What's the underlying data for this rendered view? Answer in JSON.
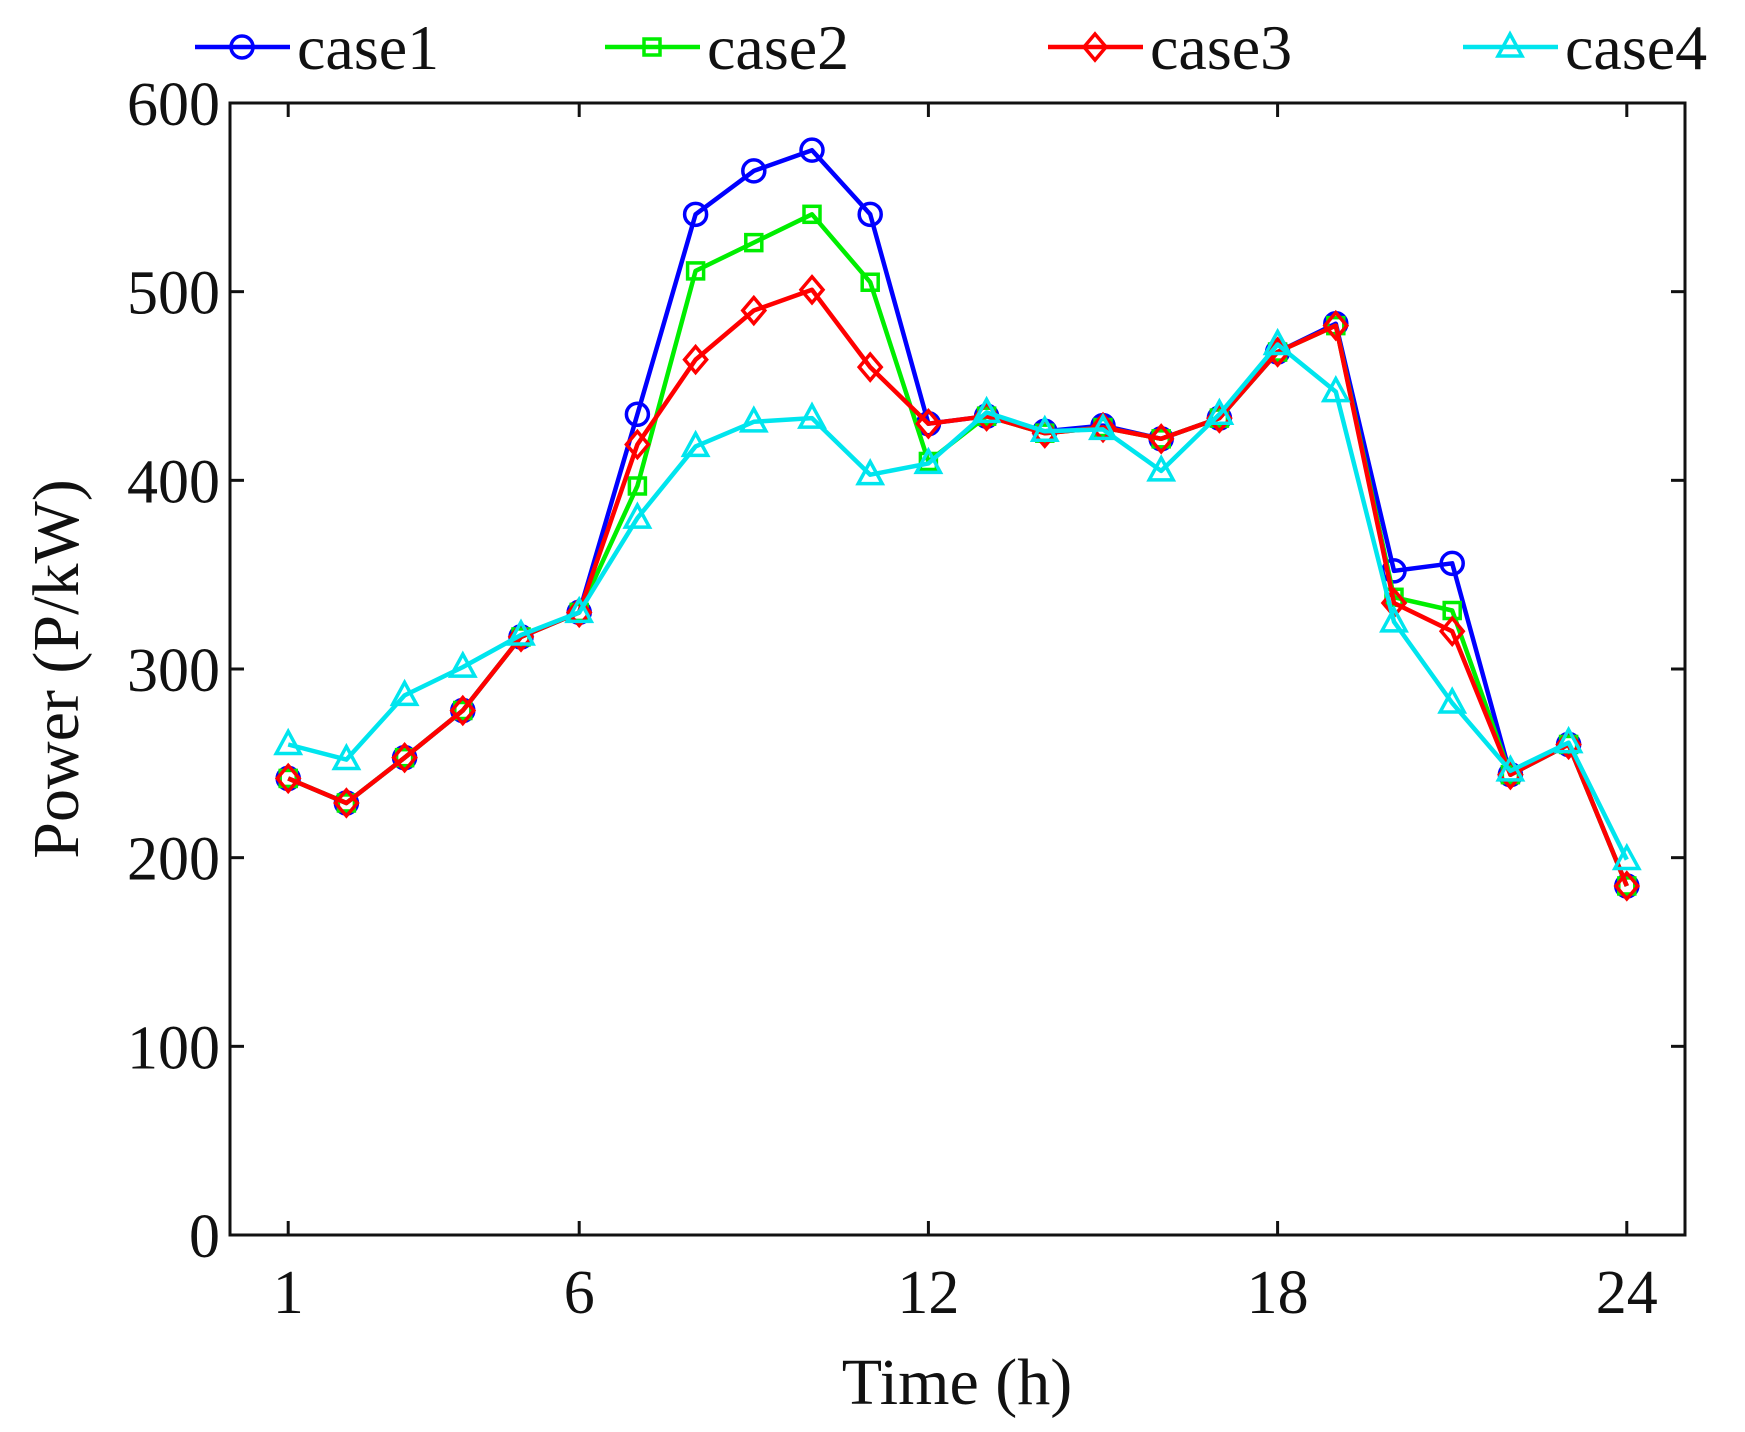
{
  "chart_data": {
    "type": "line",
    "title": "",
    "xlabel": "Time (h)",
    "ylabel": "Power (P/kW)",
    "xlim": [
      0,
      25
    ],
    "ylim": [
      0,
      600
    ],
    "xticks": [
      1,
      6,
      12,
      18,
      24
    ],
    "xtick_labels": [
      "1",
      "6",
      "12",
      "18",
      "24"
    ],
    "yticks": [
      0,
      100,
      200,
      300,
      400,
      500,
      600
    ],
    "ytick_labels": [
      "0",
      "100",
      "200",
      "300",
      "400",
      "500",
      "600"
    ],
    "grid": false,
    "legend_position": "top",
    "x": [
      1,
      2,
      3,
      4,
      5,
      6,
      7,
      8,
      9,
      10,
      11,
      12,
      13,
      14,
      15,
      16,
      17,
      18,
      19,
      20,
      21,
      22,
      23,
      24
    ],
    "series": [
      {
        "name": "case1",
        "color": "#0000ff",
        "marker": "circle",
        "values": [
          242,
          229,
          253,
          278,
          317,
          330,
          435,
          541,
          564,
          575,
          541,
          430,
          434,
          426,
          429,
          422,
          433,
          468,
          483,
          352,
          356,
          244,
          260,
          185
        ]
      },
      {
        "name": "case2",
        "color": "#00ee00",
        "marker": "square",
        "values": [
          242,
          229,
          253,
          278,
          317,
          330,
          397,
          511,
          526,
          541,
          505,
          410,
          434,
          425,
          428,
          422,
          433,
          468,
          482,
          338,
          331,
          244,
          260,
          185
        ]
      },
      {
        "name": "case3",
        "color": "#ff0000",
        "marker": "diamond",
        "values": [
          242,
          229,
          253,
          278,
          317,
          330,
          419,
          464,
          490,
          501,
          460,
          430,
          434,
          425,
          428,
          422,
          433,
          468,
          482,
          335,
          320,
          244,
          260,
          185
        ]
      },
      {
        "name": "case4",
        "color": "#00e5ee",
        "marker": "triangle",
        "values": [
          260,
          252,
          286,
          301,
          318,
          330,
          380,
          418,
          431,
          433,
          403,
          409,
          436,
          426,
          427,
          405,
          435,
          472,
          447,
          325,
          282,
          246,
          261,
          199
        ]
      }
    ]
  }
}
